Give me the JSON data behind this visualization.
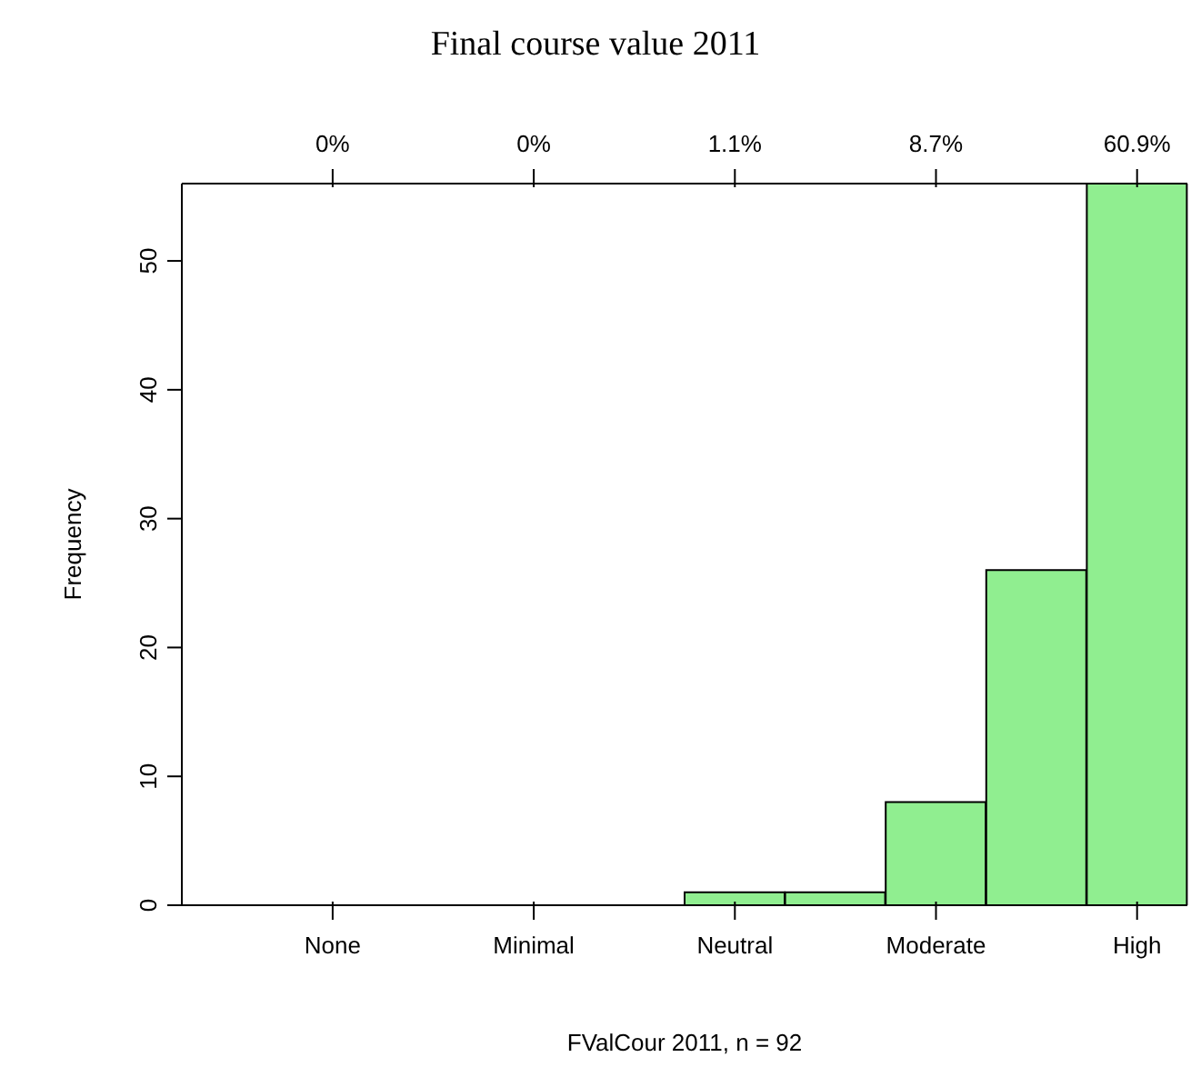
{
  "chart_data": {
    "type": "bar",
    "title": "Final course value 2011",
    "xlabel": "FValCour 2011, n = 92",
    "ylabel": "Frequency",
    "categories": [
      null,
      "None",
      null,
      "Minimal",
      null,
      "Neutral",
      null,
      "Moderate",
      null,
      "High"
    ],
    "values": [
      0,
      0,
      0,
      0,
      0,
      1,
      1,
      8,
      26,
      56
    ],
    "color": "#90ee90",
    "annotations": [
      {
        "text": "0%",
        "x": "None"
      },
      {
        "text": "0%",
        "x": "Minimal"
      },
      {
        "text": "1.1%",
        "x": "Neutral"
      },
      {
        "text": "8.7%",
        "x": "Moderate"
      },
      {
        "text": "60.9%",
        "x": "High"
      }
    ],
    "ylim": [
      0,
      56
    ],
    "yticks": [
      0,
      10,
      20,
      30,
      40,
      50
    ]
  }
}
